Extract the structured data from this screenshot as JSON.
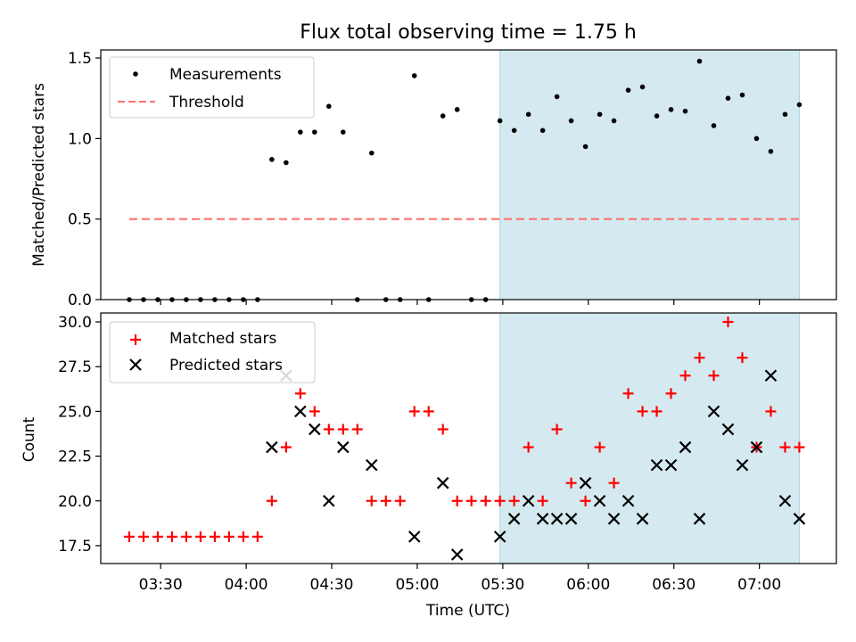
{
  "chart_data": [
    {
      "type": "scatter",
      "title": "Flux total observing time = 1.75 h",
      "xlabel": "",
      "ylabel": "Matched/Predicted stars",
      "ylim": [
        0,
        1.55
      ],
      "yticks": [
        "0.0",
        "0.5",
        "1.0",
        "1.5"
      ],
      "xlim": [
        "03:09",
        "07:27"
      ],
      "shaded_region": [
        "05:29",
        "07:14"
      ],
      "legend": {
        "position": "top-left",
        "entries": [
          "Measurements",
          "Threshold"
        ]
      },
      "series": [
        {
          "name": "Measurements",
          "style": "dot",
          "x": [
            "03:19",
            "03:24",
            "03:29",
            "03:34",
            "03:39",
            "03:44",
            "03:49",
            "03:54",
            "03:59",
            "04:04",
            "04:09",
            "04:14",
            "04:19",
            "04:24",
            "04:29",
            "04:34",
            "04:39",
            "04:44",
            "04:49",
            "04:54",
            "04:59",
            "05:04",
            "05:09",
            "05:14",
            "05:19",
            "05:24",
            "05:29",
            "05:34",
            "05:39",
            "05:44",
            "05:49",
            "05:54",
            "05:59",
            "06:04",
            "06:09",
            "06:14",
            "06:19",
            "06:24",
            "06:29",
            "06:34",
            "06:39",
            "06:44",
            "06:49",
            "06:54",
            "06:59",
            "07:04",
            "07:09",
            "07:14"
          ],
          "y": [
            0,
            0,
            0,
            0,
            0,
            0,
            0,
            0,
            0,
            0,
            0.87,
            0.85,
            1.04,
            1.04,
            1.2,
            1.04,
            0,
            0.91,
            0,
            0,
            1.39,
            0,
            1.14,
            1.18,
            0,
            0,
            1.11,
            1.05,
            1.15,
            1.05,
            1.26,
            1.11,
            0.95,
            1.15,
            1.11,
            1.3,
            1.32,
            1.14,
            1.18,
            1.17,
            1.48,
            1.08,
            1.25,
            1.27,
            1.0,
            0.92,
            1.15,
            1.21
          ]
        },
        {
          "name": "Threshold",
          "style": "dashed-line",
          "x": [
            "03:19",
            "07:14"
          ],
          "y": [
            0.5,
            0.5
          ]
        }
      ]
    },
    {
      "type": "scatter",
      "title": "",
      "xlabel": "Time (UTC)",
      "ylabel": "Count",
      "ylim": [
        16.5,
        30.5
      ],
      "yticks": [
        "17.5",
        "20.0",
        "22.5",
        "25.0",
        "27.5",
        "30.0"
      ],
      "xticks": [
        "03:30",
        "04:00",
        "04:30",
        "05:00",
        "05:30",
        "06:00",
        "06:30",
        "07:00"
      ],
      "xlim": [
        "03:09",
        "07:27"
      ],
      "shaded_region": [
        "05:29",
        "07:14"
      ],
      "legend": {
        "position": "top-left",
        "entries": [
          "Matched stars",
          "Predicted stars"
        ]
      },
      "series": [
        {
          "name": "Matched stars",
          "style": "plus",
          "x": [
            "03:19",
            "03:24",
            "03:29",
            "03:34",
            "03:39",
            "03:44",
            "03:49",
            "03:54",
            "03:59",
            "04:04",
            "04:09",
            "04:14",
            "04:19",
            "04:24",
            "04:29",
            "04:34",
            "04:39",
            "04:44",
            "04:49",
            "04:54",
            "04:59",
            "05:04",
            "05:09",
            "05:14",
            "05:19",
            "05:24",
            "05:29",
            "05:34",
            "05:39",
            "05:44",
            "05:49",
            "05:54",
            "05:59",
            "06:04",
            "06:09",
            "06:14",
            "06:19",
            "06:24",
            "06:29",
            "06:34",
            "06:39",
            "06:44",
            "06:49",
            "06:54",
            "06:59",
            "07:04",
            "07:09",
            "07:14"
          ],
          "y": [
            18,
            18,
            18,
            18,
            18,
            18,
            18,
            18,
            18,
            18,
            20,
            23,
            26,
            25,
            24,
            24,
            24,
            20,
            20,
            20,
            25,
            25,
            24,
            20,
            20,
            20,
            20,
            20,
            23,
            20,
            24,
            21,
            20,
            23,
            21,
            26,
            25,
            25,
            26,
            27,
            28,
            27,
            30,
            28,
            23,
            25,
            23,
            23
          ]
        },
        {
          "name": "Predicted stars",
          "style": "x",
          "x": [
            "04:09",
            "04:14",
            "04:19",
            "04:24",
            "04:29",
            "04:34",
            "04:44",
            "04:59",
            "05:09",
            "05:14",
            "05:29",
            "05:34",
            "05:39",
            "05:44",
            "05:49",
            "05:54",
            "05:59",
            "06:04",
            "06:09",
            "06:14",
            "06:19",
            "06:24",
            "06:29",
            "06:34",
            "06:39",
            "06:44",
            "06:49",
            "06:54",
            "06:59",
            "07:04",
            "07:09",
            "07:14"
          ],
          "y": [
            23,
            27,
            25,
            24,
            20,
            23,
            22,
            18,
            21,
            17,
            18,
            19,
            20,
            19,
            19,
            19,
            21,
            20,
            19,
            20,
            19,
            22,
            22,
            23,
            19,
            25,
            24,
            22,
            23,
            27,
            20,
            19
          ]
        }
      ]
    }
  ],
  "colors": {
    "measurement": "#000000",
    "threshold": "#ff7070",
    "matched": "#ff0000",
    "predicted": "#000000",
    "shade": "#d4eaf0",
    "shade_edge": "#a9d3e0"
  }
}
